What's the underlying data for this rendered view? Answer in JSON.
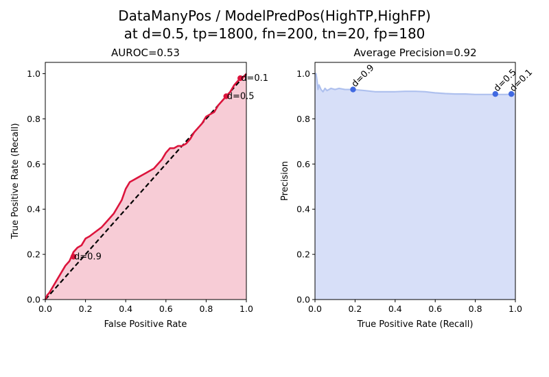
{
  "figure": {
    "title_line1": "DataManyPos / ModelPredPos(HighTP,HighFP)",
    "title_line2": "at d=0.5, tp=1800, fn=200, tn=20, fp=180"
  },
  "colors": {
    "roc_line": "#dc143c",
    "roc_fill": "#f7ccd6",
    "pr_line": "#aec0ee",
    "pr_fill": "#d7dff8",
    "pr_marker": "#4169e1",
    "diagonal": "#000000"
  },
  "chart_data": [
    {
      "type": "area",
      "name": "roc",
      "title": "AUROC=0.53",
      "xlabel": "False Positive Rate",
      "ylabel": "True Positive Rate (Recall)",
      "xlim": [
        0,
        1.0
      ],
      "ylim": [
        0,
        1.05
      ],
      "xticks": [
        "0.0",
        "0.2",
        "0.4",
        "0.6",
        "0.8",
        "1.0"
      ],
      "yticks": [
        "0.0",
        "0.2",
        "0.4",
        "0.6",
        "0.8",
        "1.0"
      ],
      "diagonal": true,
      "curve": {
        "x": [
          0,
          0.01,
          0.02,
          0.04,
          0.06,
          0.08,
          0.1,
          0.12,
          0.14,
          0.16,
          0.18,
          0.2,
          0.22,
          0.25,
          0.28,
          0.3,
          0.32,
          0.34,
          0.36,
          0.38,
          0.4,
          0.42,
          0.44,
          0.46,
          0.48,
          0.5,
          0.52,
          0.54,
          0.56,
          0.58,
          0.6,
          0.62,
          0.64,
          0.66,
          0.68,
          0.7,
          0.72,
          0.74,
          0.76,
          0.78,
          0.8,
          0.82,
          0.84,
          0.86,
          0.88,
          0.9,
          0.92,
          0.94,
          0.96,
          0.98,
          1.0
        ],
        "y": [
          0,
          0.02,
          0.03,
          0.06,
          0.09,
          0.12,
          0.15,
          0.17,
          0.21,
          0.23,
          0.24,
          0.27,
          0.28,
          0.3,
          0.32,
          0.34,
          0.36,
          0.38,
          0.41,
          0.44,
          0.49,
          0.52,
          0.53,
          0.54,
          0.55,
          0.56,
          0.57,
          0.58,
          0.6,
          0.62,
          0.65,
          0.67,
          0.67,
          0.68,
          0.68,
          0.69,
          0.71,
          0.74,
          0.76,
          0.78,
          0.81,
          0.82,
          0.83,
          0.86,
          0.88,
          0.9,
          0.92,
          0.95,
          0.97,
          0.98,
          1.0
        ]
      },
      "markers": [
        {
          "label": "d=0.1",
          "x": 0.97,
          "y": 0.98
        },
        {
          "label": "d=0.5",
          "x": 0.9,
          "y": 0.9
        },
        {
          "label": "d=0.9",
          "x": 0.14,
          "y": 0.19
        }
      ]
    },
    {
      "type": "area",
      "name": "pr",
      "title": "Average Precision=0.92",
      "xlabel": "True Positive Rate (Recall)",
      "ylabel": "Precision",
      "xlim": [
        0,
        1.0
      ],
      "ylim": [
        0,
        1.05
      ],
      "xticks": [
        "0.0",
        "0.2",
        "0.4",
        "0.6",
        "0.8",
        "1.0"
      ],
      "yticks": [
        "0.0",
        "0.2",
        "0.4",
        "0.6",
        "0.8",
        "1.0"
      ],
      "curve": {
        "x": [
          0,
          0.005,
          0.01,
          0.015,
          0.02,
          0.025,
          0.03,
          0.04,
          0.05,
          0.06,
          0.07,
          0.08,
          0.1,
          0.12,
          0.15,
          0.19,
          0.25,
          0.3,
          0.35,
          0.4,
          0.45,
          0.5,
          0.55,
          0.6,
          0.65,
          0.7,
          0.75,
          0.8,
          0.85,
          0.9,
          0.95,
          0.98,
          1.0
        ],
        "y": [
          1.0,
          1.0,
          0.97,
          0.93,
          0.95,
          0.94,
          0.93,
          0.92,
          0.935,
          0.925,
          0.93,
          0.935,
          0.93,
          0.935,
          0.93,
          0.93,
          0.925,
          0.92,
          0.92,
          0.92,
          0.922,
          0.922,
          0.92,
          0.915,
          0.912,
          0.91,
          0.91,
          0.908,
          0.908,
          0.908,
          0.908,
          0.909,
          0.909
        ]
      },
      "markers": [
        {
          "label": "d=0.9",
          "x": 0.19,
          "y": 0.93
        },
        {
          "label": "d=0.5",
          "x": 0.9,
          "y": 0.91
        },
        {
          "label": "d=0.1",
          "x": 0.98,
          "y": 0.91
        }
      ]
    }
  ]
}
